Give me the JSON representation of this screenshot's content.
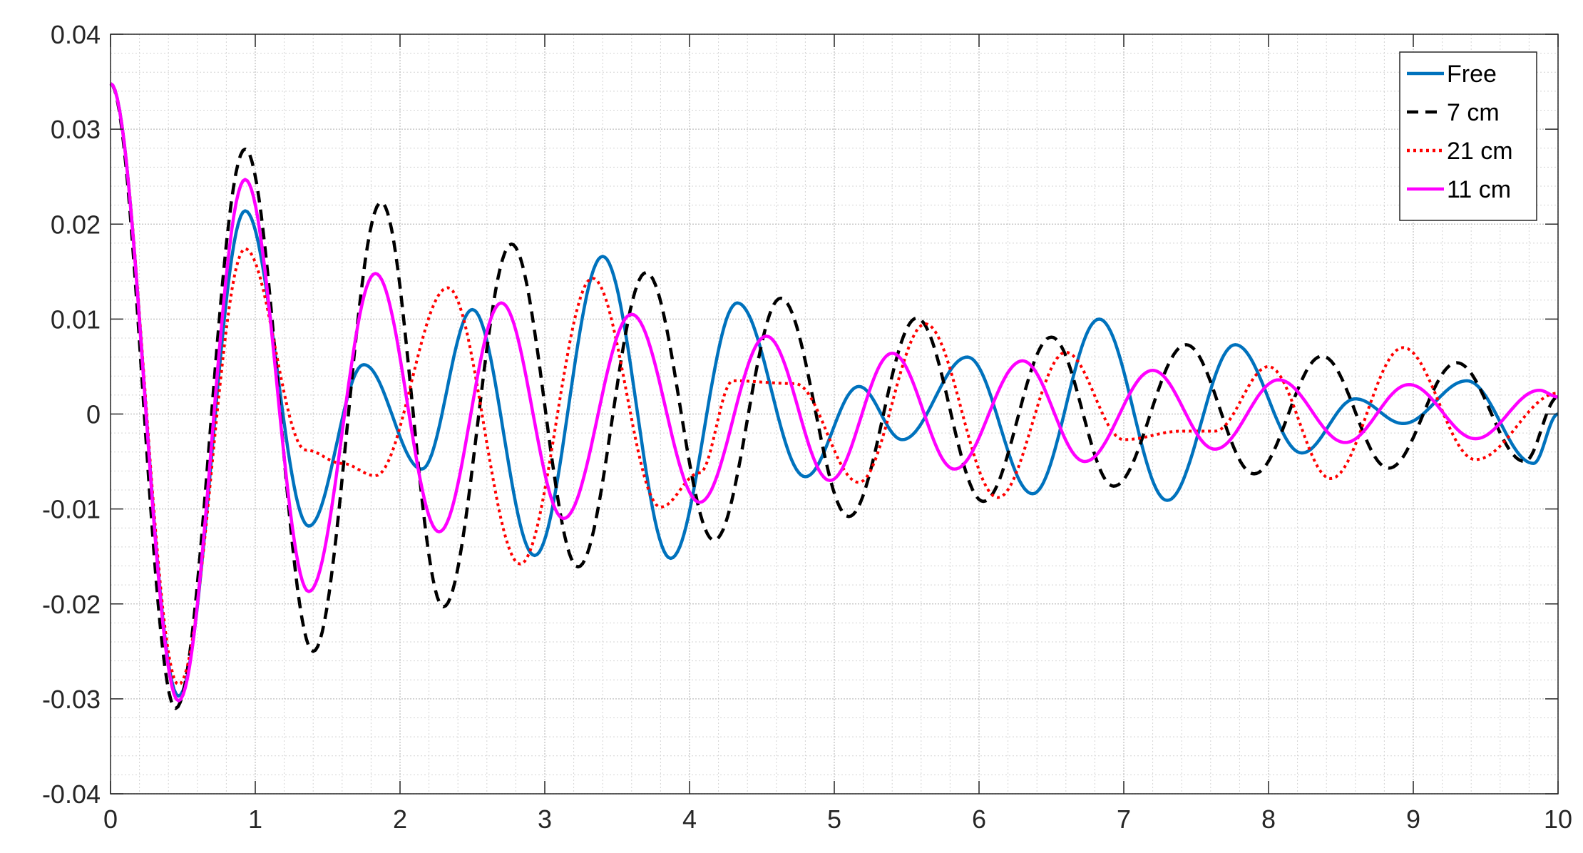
{
  "chart_data": {
    "type": "line",
    "title": "",
    "xlabel": "",
    "ylabel": "",
    "xlim": [
      0,
      10
    ],
    "ylim": [
      -0.04,
      0.04
    ],
    "x_ticks": [
      0,
      1,
      2,
      3,
      4,
      5,
      6,
      7,
      8,
      9,
      10
    ],
    "x_tick_labels": [
      "0",
      "1",
      "2",
      "3",
      "4",
      "5",
      "6",
      "7",
      "8",
      "9",
      "10"
    ],
    "y_ticks": [
      -0.04,
      -0.03,
      -0.02,
      -0.01,
      0,
      0.01,
      0.02,
      0.03,
      0.04
    ],
    "y_tick_labels": [
      "-0.04",
      "-0.03",
      "-0.02",
      "-0.01",
      "0",
      "0.01",
      "0.02",
      "0.03",
      "0.04"
    ],
    "grid": true,
    "minor_grid": true,
    "legend_position": "top-right",
    "series": [
      {
        "name": "Free",
        "color": "#0072BD",
        "style": "solid",
        "points": [
          [
            0,
            0.0348
          ],
          [
            0.47,
            -0.0297
          ],
          [
            0.93,
            0.0214
          ],
          [
            1.37,
            -0.0118
          ],
          [
            1.75,
            0.0052
          ],
          [
            2.15,
            -0.0058
          ],
          [
            2.5,
            0.011
          ],
          [
            2.93,
            -0.0149
          ],
          [
            3.4,
            0.0166
          ],
          [
            3.87,
            -0.0152
          ],
          [
            4.33,
            0.0117
          ],
          [
            4.8,
            -0.0066
          ],
          [
            5.17,
            0.0029
          ],
          [
            5.47,
            -0.0027
          ],
          [
            5.92,
            0.006
          ],
          [
            6.37,
            -0.0084
          ],
          [
            6.83,
            0.01
          ],
          [
            7.3,
            -0.0091
          ],
          [
            7.77,
            0.0073
          ],
          [
            8.23,
            -0.0041
          ],
          [
            8.6,
            0.0016
          ],
          [
            8.93,
            -0.001
          ],
          [
            9.37,
            0.0035
          ],
          [
            9.83,
            -0.0052
          ],
          [
            10,
            0
          ]
        ]
      },
      {
        "name": "7 cm",
        "color": "#000000",
        "style": "dashed",
        "points": [
          [
            0,
            0.0348
          ],
          [
            0.45,
            -0.031
          ],
          [
            0.93,
            0.0279
          ],
          [
            1.4,
            -0.025
          ],
          [
            1.87,
            0.0223
          ],
          [
            2.3,
            -0.0203
          ],
          [
            2.77,
            0.0179
          ],
          [
            3.23,
            -0.0161
          ],
          [
            3.7,
            0.0149
          ],
          [
            4.17,
            -0.0133
          ],
          [
            4.63,
            0.0122
          ],
          [
            5.1,
            -0.0108
          ],
          [
            5.57,
            0.0101
          ],
          [
            6.03,
            -0.0092
          ],
          [
            6.5,
            0.0081
          ],
          [
            6.93,
            -0.0076
          ],
          [
            7.43,
            0.0073
          ],
          [
            7.9,
            -0.0063
          ],
          [
            8.37,
            0.0061
          ],
          [
            8.83,
            -0.0057
          ],
          [
            9.3,
            0.0054
          ],
          [
            9.77,
            -0.005
          ],
          [
            10,
            0.0018
          ]
        ]
      },
      {
        "name": "21 cm",
        "color": "#FF0000",
        "style": "dotted",
        "points": [
          [
            0,
            0.0348
          ],
          [
            0.47,
            -0.0285
          ],
          [
            0.93,
            0.0174
          ],
          [
            1.35,
            -0.0038
          ],
          [
            1.6,
            -0.0052
          ],
          [
            1.83,
            -0.0065
          ],
          [
            2.33,
            0.0133
          ],
          [
            2.83,
            -0.0158
          ],
          [
            3.33,
            0.0143
          ],
          [
            3.8,
            -0.0098
          ],
          [
            4.07,
            -0.0062
          ],
          [
            4.3,
            0.0035
          ],
          [
            4.73,
            0.0032
          ],
          [
            5.17,
            -0.0072
          ],
          [
            5.63,
            0.0095
          ],
          [
            6.13,
            -0.0088
          ],
          [
            6.6,
            0.0065
          ],
          [
            7.0,
            -0.0027
          ],
          [
            7.4,
            -0.0018
          ],
          [
            7.63,
            -0.0018
          ],
          [
            8.0,
            0.005
          ],
          [
            8.43,
            -0.0068
          ],
          [
            8.93,
            0.007
          ],
          [
            9.43,
            -0.0048
          ],
          [
            10,
            0.0022
          ]
        ]
      },
      {
        "name": "11 cm",
        "color": "#FF00FF",
        "style": "solid",
        "points": [
          [
            0,
            0.0348
          ],
          [
            0.47,
            -0.0302
          ],
          [
            0.93,
            0.0247
          ],
          [
            1.37,
            -0.0187
          ],
          [
            1.83,
            0.0148
          ],
          [
            2.27,
            -0.0124
          ],
          [
            2.7,
            0.0117
          ],
          [
            3.13,
            -0.011
          ],
          [
            3.6,
            0.0105
          ],
          [
            4.07,
            -0.0093
          ],
          [
            4.53,
            0.0082
          ],
          [
            4.97,
            -0.007
          ],
          [
            5.4,
            0.0064
          ],
          [
            5.83,
            -0.0058
          ],
          [
            6.3,
            0.0056
          ],
          [
            6.73,
            -0.005
          ],
          [
            7.2,
            0.0046
          ],
          [
            7.63,
            -0.0037
          ],
          [
            8.07,
            0.0036
          ],
          [
            8.53,
            -0.003
          ],
          [
            8.97,
            0.0031
          ],
          [
            9.43,
            -0.0026
          ],
          [
            9.87,
            0.0025
          ],
          [
            10,
            0.0018
          ]
        ]
      }
    ]
  }
}
